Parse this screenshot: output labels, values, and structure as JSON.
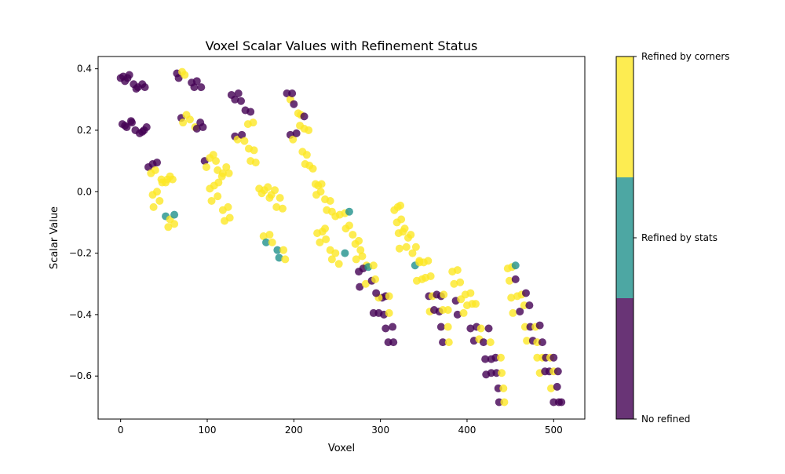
{
  "chart_data": {
    "type": "scatter",
    "title": "Voxel Scalar Values with Refinement Status",
    "xlabel": "Voxel",
    "ylabel": "Scalar Value",
    "xlim": [
      -26,
      536
    ],
    "ylim": [
      -0.74,
      0.44
    ],
    "xticks": [
      0,
      100,
      200,
      300,
      400,
      500
    ],
    "xtick_labels": [
      "0",
      "100",
      "200",
      "300",
      "400",
      "500"
    ],
    "yticks": [
      0.4,
      0.2,
      0.0,
      -0.2,
      -0.4,
      -0.6
    ],
    "ytick_labels": [
      "0.4",
      "0.2",
      "0.0",
      "−0.2",
      "−0.4",
      "−0.6"
    ],
    "grid": false,
    "colorbar": {
      "position": "right",
      "categories": [
        {
          "label": "No refined",
          "value": 0,
          "color": "#440154"
        },
        {
          "label": "Refined by stats",
          "value": 1,
          "color": "#21918c"
        },
        {
          "label": "Refined by corners",
          "value": 2,
          "color": "#fde725"
        }
      ]
    },
    "points": [
      [
        0,
        0.37,
        0
      ],
      [
        5,
        0.36,
        0
      ],
      [
        10,
        0.38,
        0
      ],
      [
        15,
        0.35,
        0
      ],
      [
        20,
        0.34,
        0
      ],
      [
        25,
        0.35,
        0
      ],
      [
        28,
        0.34,
        0
      ],
      [
        8,
        0.37,
        0
      ],
      [
        3,
        0.375,
        0
      ],
      [
        18,
        0.335,
        0
      ],
      [
        2,
        0.22,
        0
      ],
      [
        7,
        0.21,
        0
      ],
      [
        12,
        0.23,
        0
      ],
      [
        17,
        0.2,
        0
      ],
      [
        22,
        0.19,
        0
      ],
      [
        27,
        0.2,
        0
      ],
      [
        30,
        0.21,
        0
      ],
      [
        5,
        0.215,
        0
      ],
      [
        13,
        0.225,
        0
      ],
      [
        25,
        0.195,
        0
      ],
      [
        32,
        0.08,
        0
      ],
      [
        37,
        0.09,
        0
      ],
      [
        42,
        0.095,
        0
      ],
      [
        35,
        0.06,
        2
      ],
      [
        40,
        0.07,
        2
      ],
      [
        37,
        -0.01,
        2
      ],
      [
        42,
        0.0,
        2
      ],
      [
        47,
        0.04,
        2
      ],
      [
        52,
        0.03,
        2
      ],
      [
        57,
        0.05,
        2
      ],
      [
        60,
        0.04,
        2
      ],
      [
        38,
        -0.05,
        2
      ],
      [
        45,
        -0.03,
        2
      ],
      [
        52,
        -0.08,
        1
      ],
      [
        57,
        -0.09,
        2
      ],
      [
        62,
        -0.075,
        1
      ],
      [
        55,
        -0.115,
        2
      ],
      [
        62,
        -0.105,
        2
      ],
      [
        48,
        0.03,
        2
      ],
      [
        54,
        0.04,
        2
      ],
      [
        65,
        0.385,
        0
      ],
      [
        67,
        0.37,
        0
      ],
      [
        71,
        0.39,
        2
      ],
      [
        74,
        0.38,
        2
      ],
      [
        82,
        0.355,
        0
      ],
      [
        88,
        0.36,
        0
      ],
      [
        85,
        0.34,
        0
      ],
      [
        93,
        0.34,
        0
      ],
      [
        70,
        0.24,
        0
      ],
      [
        72,
        0.225,
        2
      ],
      [
        76,
        0.25,
        2
      ],
      [
        80,
        0.235,
        2
      ],
      [
        86,
        0.21,
        2
      ],
      [
        88,
        0.205,
        0
      ],
      [
        92,
        0.225,
        0
      ],
      [
        95,
        0.21,
        0
      ],
      [
        97,
        0.1,
        0
      ],
      [
        99,
        0.08,
        2
      ],
      [
        103,
        0.11,
        2
      ],
      [
        107,
        0.12,
        2
      ],
      [
        110,
        0.1,
        2
      ],
      [
        112,
        0.07,
        2
      ],
      [
        118,
        0.06,
        2
      ],
      [
        122,
        0.08,
        2
      ],
      [
        125,
        0.06,
        2
      ],
      [
        103,
        0.01,
        2
      ],
      [
        108,
        0.02,
        2
      ],
      [
        113,
        0.03,
        2
      ],
      [
        117,
        0.05,
        2
      ],
      [
        105,
        -0.03,
        2
      ],
      [
        112,
        -0.015,
        2
      ],
      [
        118,
        -0.06,
        2
      ],
      [
        124,
        -0.05,
        2
      ],
      [
        120,
        -0.095,
        2
      ],
      [
        126,
        -0.085,
        2
      ],
      [
        128,
        0.315,
        0
      ],
      [
        132,
        0.3,
        0
      ],
      [
        136,
        0.32,
        0
      ],
      [
        139,
        0.295,
        0
      ],
      [
        144,
        0.265,
        0
      ],
      [
        150,
        0.26,
        0
      ],
      [
        132,
        0.18,
        0
      ],
      [
        135,
        0.17,
        2
      ],
      [
        140,
        0.185,
        0
      ],
      [
        143,
        0.165,
        2
      ],
      [
        147,
        0.22,
        2
      ],
      [
        153,
        0.225,
        2
      ],
      [
        148,
        0.14,
        2
      ],
      [
        154,
        0.135,
        2
      ],
      [
        150,
        0.1,
        2
      ],
      [
        156,
        0.095,
        2
      ],
      [
        160,
        0.01,
        2
      ],
      [
        163,
        -0.005,
        2
      ],
      [
        166,
        0.005,
        2
      ],
      [
        170,
        0.015,
        2
      ],
      [
        174,
        -0.01,
        2
      ],
      [
        178,
        0.005,
        2
      ],
      [
        172,
        -0.02,
        2
      ],
      [
        180,
        -0.05,
        2
      ],
      [
        184,
        -0.02,
        2
      ],
      [
        187,
        -0.055,
        2
      ],
      [
        165,
        -0.145,
        2
      ],
      [
        172,
        -0.14,
        2
      ],
      [
        168,
        -0.165,
        1
      ],
      [
        175,
        -0.165,
        2
      ],
      [
        181,
        -0.19,
        1
      ],
      [
        183,
        -0.215,
        1
      ],
      [
        188,
        -0.19,
        2
      ],
      [
        190,
        -0.22,
        2
      ],
      [
        192,
        0.32,
        0
      ],
      [
        196,
        0.3,
        2
      ],
      [
        198,
        0.32,
        0
      ],
      [
        200,
        0.285,
        0
      ],
      [
        196,
        0.185,
        0
      ],
      [
        199,
        0.17,
        2
      ],
      [
        203,
        0.19,
        0
      ],
      [
        205,
        0.255,
        2
      ],
      [
        208,
        0.25,
        2
      ],
      [
        212,
        0.245,
        0
      ],
      [
        207,
        0.215,
        2
      ],
      [
        212,
        0.205,
        2
      ],
      [
        217,
        0.2,
        2
      ],
      [
        210,
        0.13,
        2
      ],
      [
        215,
        0.12,
        2
      ],
      [
        213,
        0.09,
        2
      ],
      [
        218,
        0.085,
        2
      ],
      [
        222,
        0.075,
        2
      ],
      [
        225,
        0.025,
        2
      ],
      [
        228,
        0.02,
        2
      ],
      [
        232,
        0.025,
        2
      ],
      [
        226,
        -0.01,
        2
      ],
      [
        231,
        0.0,
        2
      ],
      [
        236,
        -0.025,
        2
      ],
      [
        242,
        -0.03,
        2
      ],
      [
        238,
        -0.06,
        2
      ],
      [
        244,
        -0.065,
        2
      ],
      [
        248,
        -0.08,
        2
      ],
      [
        253,
        -0.075,
        2
      ],
      [
        259,
        -0.07,
        2
      ],
      [
        264,
        -0.065,
        1
      ],
      [
        227,
        -0.135,
        2
      ],
      [
        233,
        -0.13,
        2
      ],
      [
        236,
        -0.12,
        2
      ],
      [
        230,
        -0.165,
        2
      ],
      [
        237,
        -0.155,
        2
      ],
      [
        242,
        -0.19,
        2
      ],
      [
        248,
        -0.2,
        2
      ],
      [
        244,
        -0.22,
        2
      ],
      [
        252,
        -0.235,
        2
      ],
      [
        259,
        -0.2,
        1
      ],
      [
        260,
        -0.12,
        2
      ],
      [
        264,
        -0.11,
        2
      ],
      [
        268,
        -0.14,
        2
      ],
      [
        271,
        -0.17,
        2
      ],
      [
        275,
        -0.16,
        2
      ],
      [
        277,
        -0.19,
        2
      ],
      [
        272,
        -0.22,
        2
      ],
      [
        279,
        -0.21,
        2
      ],
      [
        284,
        -0.24,
        2
      ],
      [
        275,
        -0.26,
        0
      ],
      [
        280,
        -0.25,
        0
      ],
      [
        286,
        -0.245,
        1
      ],
      [
        292,
        -0.24,
        2
      ],
      [
        276,
        -0.31,
        0
      ],
      [
        283,
        -0.3,
        2
      ],
      [
        290,
        -0.29,
        0
      ],
      [
        294,
        -0.285,
        2
      ],
      [
        292,
        -0.395,
        0
      ],
      [
        298,
        -0.395,
        0
      ],
      [
        302,
        -0.345,
        0
      ],
      [
        306,
        -0.34,
        0
      ],
      [
        310,
        -0.34,
        2
      ],
      [
        304,
        -0.4,
        0
      ],
      [
        310,
        -0.395,
        2
      ],
      [
        306,
        -0.445,
        0
      ],
      [
        314,
        -0.44,
        0
      ],
      [
        309,
        -0.49,
        0
      ],
      [
        315,
        -0.49,
        0
      ],
      [
        298,
        -0.345,
        2
      ],
      [
        295,
        -0.33,
        0
      ],
      [
        316,
        -0.06,
        2
      ],
      [
        320,
        -0.05,
        2
      ],
      [
        323,
        -0.045,
        2
      ],
      [
        319,
        -0.1,
        2
      ],
      [
        324,
        -0.09,
        2
      ],
      [
        328,
        -0.12,
        2
      ],
      [
        321,
        -0.135,
        2
      ],
      [
        326,
        -0.13,
        2
      ],
      [
        332,
        -0.15,
        2
      ],
      [
        335,
        -0.14,
        2
      ],
      [
        322,
        -0.185,
        2
      ],
      [
        330,
        -0.18,
        2
      ],
      [
        337,
        -0.2,
        2
      ],
      [
        341,
        -0.18,
        2
      ],
      [
        345,
        -0.225,
        2
      ],
      [
        340,
        -0.24,
        1
      ],
      [
        345,
        -0.23,
        2
      ],
      [
        350,
        -0.23,
        2
      ],
      [
        355,
        -0.225,
        2
      ],
      [
        342,
        -0.29,
        2
      ],
      [
        348,
        -0.285,
        2
      ],
      [
        352,
        -0.28,
        2
      ],
      [
        358,
        -0.275,
        2
      ],
      [
        356,
        -0.34,
        0
      ],
      [
        360,
        -0.34,
        2
      ],
      [
        365,
        -0.335,
        0
      ],
      [
        370,
        -0.34,
        0
      ],
      [
        373,
        -0.335,
        2
      ],
      [
        357,
        -0.39,
        2
      ],
      [
        362,
        -0.385,
        0
      ],
      [
        368,
        -0.39,
        0
      ],
      [
        372,
        -0.385,
        2
      ],
      [
        378,
        -0.385,
        2
      ],
      [
        370,
        -0.44,
        0
      ],
      [
        378,
        -0.44,
        2
      ],
      [
        372,
        -0.49,
        0
      ],
      [
        379,
        -0.49,
        2
      ],
      [
        383,
        -0.26,
        2
      ],
      [
        389,
        -0.255,
        2
      ],
      [
        385,
        -0.3,
        2
      ],
      [
        392,
        -0.295,
        2
      ],
      [
        387,
        -0.355,
        0
      ],
      [
        393,
        -0.35,
        2
      ],
      [
        389,
        -0.4,
        0
      ],
      [
        396,
        -0.395,
        2
      ],
      [
        398,
        -0.335,
        2
      ],
      [
        404,
        -0.33,
        2
      ],
      [
        400,
        -0.37,
        2
      ],
      [
        406,
        -0.365,
        2
      ],
      [
        410,
        -0.365,
        2
      ],
      [
        404,
        -0.445,
        0
      ],
      [
        411,
        -0.44,
        0
      ],
      [
        416,
        -0.445,
        2
      ],
      [
        408,
        -0.485,
        0
      ],
      [
        414,
        -0.48,
        2
      ],
      [
        419,
        -0.49,
        0
      ],
      [
        425,
        -0.445,
        0
      ],
      [
        427,
        -0.49,
        2
      ],
      [
        421,
        -0.545,
        0
      ],
      [
        428,
        -0.545,
        0
      ],
      [
        433,
        -0.54,
        0
      ],
      [
        439,
        -0.54,
        2
      ],
      [
        422,
        -0.595,
        0
      ],
      [
        428,
        -0.59,
        0
      ],
      [
        434,
        -0.59,
        0
      ],
      [
        440,
        -0.59,
        2
      ],
      [
        436,
        -0.64,
        0
      ],
      [
        442,
        -0.64,
        2
      ],
      [
        437,
        -0.685,
        0
      ],
      [
        443,
        -0.685,
        2
      ],
      [
        447,
        -0.25,
        2
      ],
      [
        452,
        -0.245,
        2
      ],
      [
        456,
        -0.24,
        1
      ],
      [
        449,
        -0.29,
        2
      ],
      [
        456,
        -0.285,
        0
      ],
      [
        451,
        -0.345,
        2
      ],
      [
        458,
        -0.34,
        2
      ],
      [
        463,
        -0.335,
        2
      ],
      [
        468,
        -0.33,
        0
      ],
      [
        453,
        -0.395,
        2
      ],
      [
        461,
        -0.39,
        0
      ],
      [
        466,
        -0.37,
        2
      ],
      [
        472,
        -0.37,
        0
      ],
      [
        467,
        -0.44,
        2
      ],
      [
        473,
        -0.44,
        0
      ],
      [
        479,
        -0.44,
        2
      ],
      [
        484,
        -0.435,
        0
      ],
      [
        469,
        -0.485,
        2
      ],
      [
        476,
        -0.485,
        0
      ],
      [
        481,
        -0.49,
        2
      ],
      [
        487,
        -0.49,
        0
      ],
      [
        481,
        -0.54,
        2
      ],
      [
        487,
        -0.54,
        2
      ],
      [
        491,
        -0.54,
        0
      ],
      [
        496,
        -0.54,
        2
      ],
      [
        500,
        -0.54,
        0
      ],
      [
        484,
        -0.59,
        2
      ],
      [
        490,
        -0.585,
        0
      ],
      [
        495,
        -0.585,
        0
      ],
      [
        500,
        -0.585,
        2
      ],
      [
        505,
        -0.585,
        0
      ],
      [
        497,
        -0.64,
        2
      ],
      [
        504,
        -0.635,
        0
      ],
      [
        500,
        -0.685,
        0
      ],
      [
        506,
        -0.685,
        0
      ],
      [
        509,
        -0.685,
        0
      ]
    ]
  }
}
